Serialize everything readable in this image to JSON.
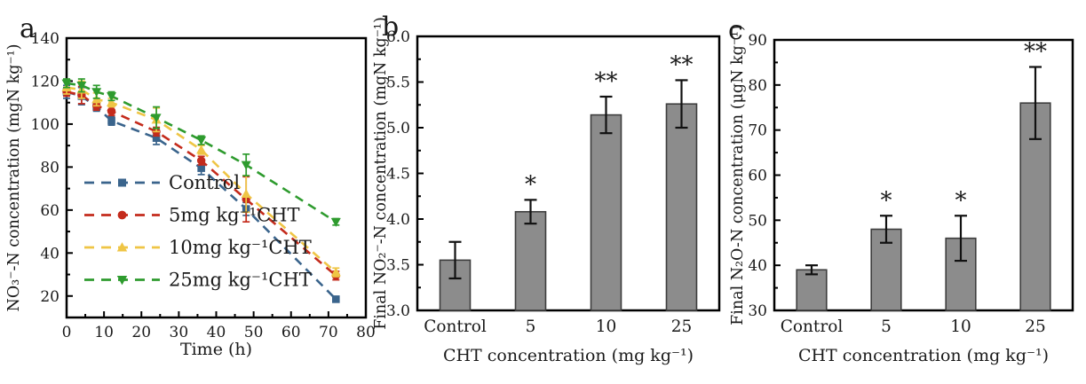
{
  "figure": {
    "background": "#ffffff",
    "frame_color": "#000000",
    "error_bar_color": "#1a1a1a"
  },
  "chart_data": [
    {
      "type": "line",
      "panel_label": "a",
      "xlabel": "Time (h)",
      "ylabel": "NO₃⁻-N concentration (mgN kg⁻¹)",
      "xlim": [
        0,
        80
      ],
      "ylim": [
        10,
        140
      ],
      "xticks": [
        0,
        10,
        20,
        30,
        40,
        50,
        60,
        70,
        80
      ],
      "xticklabels": [
        "0",
        "10",
        "20",
        "30",
        "40",
        "50",
        "60",
        "70",
        "80"
      ],
      "yticks": [
        20,
        40,
        60,
        80,
        100,
        120,
        140
      ],
      "yticklabels": [
        "20",
        "40",
        "60",
        "80",
        "100",
        "120",
        "140"
      ],
      "x_minor_step": 5,
      "y_minor_step": 10,
      "grid": false,
      "legend_position": "lower-left",
      "x": [
        0,
        4,
        8,
        12,
        24,
        36,
        48,
        72
      ],
      "series": [
        {
          "name": "Control",
          "marker": "square",
          "color": "#3A648C",
          "values": [
            115,
            113,
            108,
            101.5,
            93.5,
            79.5,
            60.5,
            18.5
          ],
          "errors": [
            3,
            4,
            2,
            2,
            3,
            3,
            3,
            1
          ]
        },
        {
          "name": "5mg kg⁻¹CHT",
          "marker": "circle",
          "color": "#C42B1C",
          "values": [
            115,
            113.5,
            108.5,
            106,
            96.5,
            83,
            65,
            29.5
          ],
          "errors": [
            2,
            4,
            2,
            2,
            2,
            2,
            10.5,
            2
          ]
        },
        {
          "name": "10mg kg⁻¹CHT",
          "marker": "triangle-up",
          "color": "#EFC545",
          "values": [
            117,
            116,
            111.5,
            110,
            102,
            88,
            67.5,
            31
          ],
          "errors": [
            3,
            4,
            3,
            2,
            5.5,
            2,
            8.5,
            2
          ]
        },
        {
          "name": "25mg kg⁻¹CHT",
          "marker": "triangle-down",
          "color": "#2E9B2E",
          "values": [
            119,
            118,
            115,
            113,
            103,
            92.5,
            81,
            54.5
          ],
          "errors": [
            2,
            3,
            3,
            2,
            5,
            2,
            5,
            1.5
          ]
        }
      ]
    },
    {
      "type": "bar",
      "panel_label": "b",
      "xlabel": "CHT concentration  (mg kg⁻¹)",
      "ylabel": "Final NO₂⁻-N concentration  (mgN kg⁻¹)",
      "categories": [
        "Control",
        "5",
        "10",
        "25"
      ],
      "values": [
        3.55,
        4.08,
        5.14,
        5.26
      ],
      "errors": [
        0.2,
        0.13,
        0.2,
        0.26
      ],
      "significance": [
        "",
        "*",
        "**",
        "**"
      ],
      "ylim": [
        3.0,
        6.0
      ],
      "yticks": [
        3.0,
        3.5,
        4.0,
        4.5,
        5.0,
        5.5,
        6.0
      ],
      "yticklabels": [
        "3.0",
        "3.5",
        "4.0",
        "4.5",
        "5.0",
        "5.5",
        "6.0"
      ],
      "y_minor_step": 0.25,
      "grid": false,
      "bar_color": "#8C8C8C",
      "bar_edge": "#3d3d3d"
    },
    {
      "type": "bar",
      "panel_label": "c",
      "xlabel": "CHT concentration  (mg kg⁻¹)",
      "ylabel": "Final N₂O-N concentration (μgN kg⁻¹)",
      "categories": [
        "Control",
        "5",
        "10",
        "25"
      ],
      "values": [
        39,
        48,
        46,
        76
      ],
      "errors": [
        1,
        3,
        5,
        8
      ],
      "significance": [
        "",
        "*",
        "*",
        "**"
      ],
      "ylim": [
        30,
        90
      ],
      "yticks": [
        30,
        40,
        50,
        60,
        70,
        80,
        90
      ],
      "yticklabels": [
        "30",
        "40",
        "50",
        "60",
        "70",
        "80",
        "90"
      ],
      "y_minor_step": 5,
      "grid": false,
      "bar_color": "#8C8C8C",
      "bar_edge": "#3d3d3d"
    }
  ]
}
